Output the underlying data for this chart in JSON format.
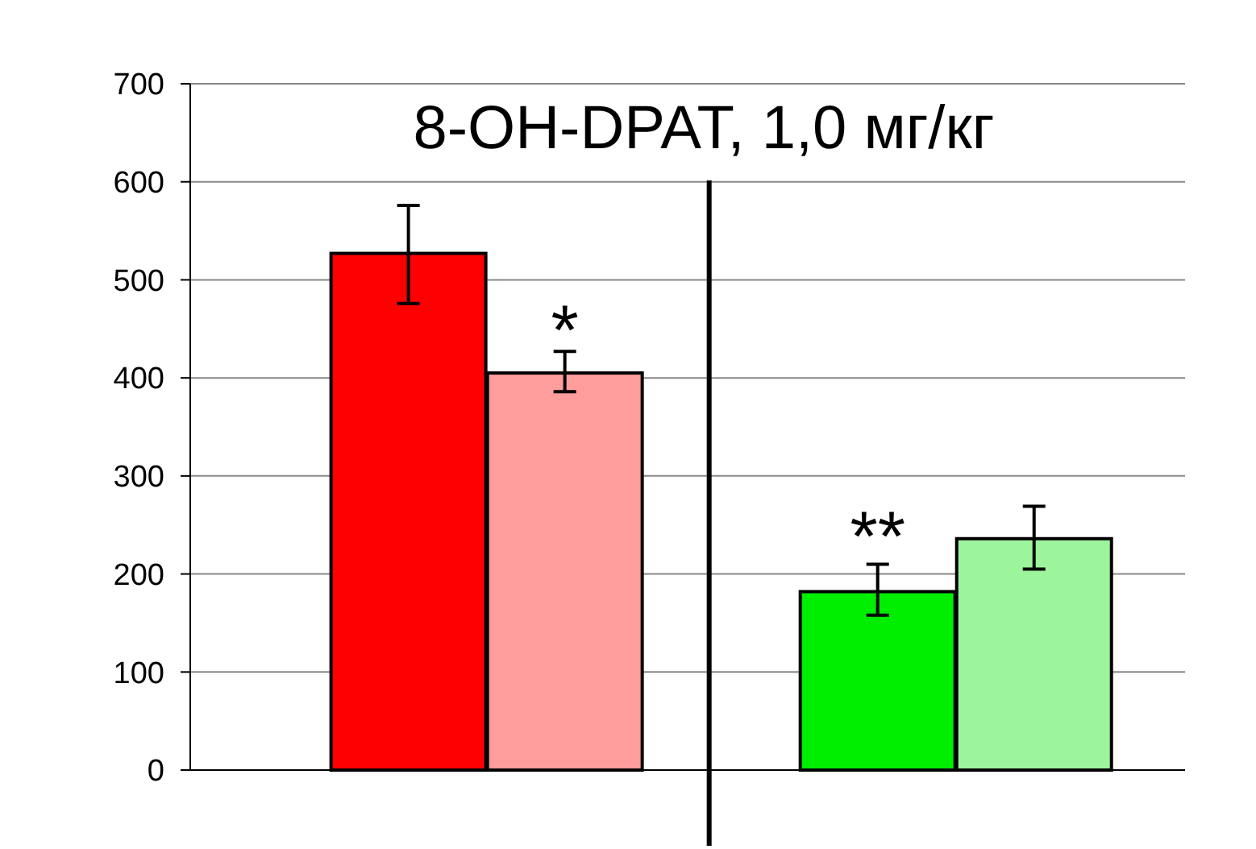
{
  "chart_data": {
    "type": "bar",
    "title": "8-OH-DPAT, 1,0 мг/кг",
    "categories": [
      null,
      null,
      null,
      null
    ],
    "values": [
      527,
      405,
      182,
      236
    ],
    "errors": [
      [
        476,
        576
      ],
      [
        386,
        427
      ],
      [
        158,
        210
      ],
      [
        205,
        269
      ]
    ],
    "colors": [
      "#ff0000",
      "#ff9c9c",
      "#00ee00",
      "#9cf59c"
    ],
    "ylim": [
      0,
      700
    ],
    "yticks": [
      0,
      100,
      200,
      300,
      400,
      500,
      600,
      700
    ],
    "grid": "y",
    "annotations": [
      "*",
      "**"
    ]
  }
}
